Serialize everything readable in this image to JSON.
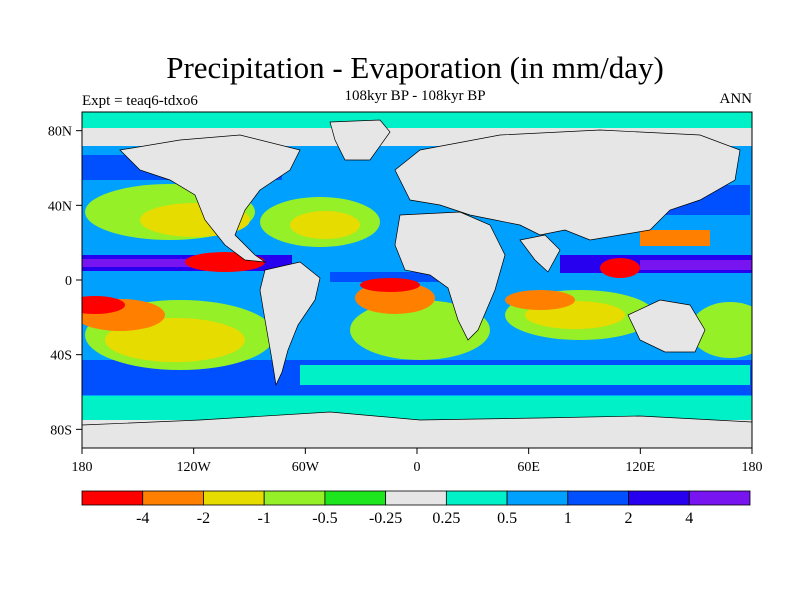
{
  "title": "Precipitation - Evaporation (in mm/day)",
  "subtitle": "108kyr BP - 108kyr BP",
  "left_label": "Expt = teaq6-tdxo6",
  "right_label": "ANN",
  "map": {
    "projection": "cylindrical-equidistant",
    "lon_range": [
      -180,
      180
    ],
    "lat_range": [
      -90,
      90
    ],
    "land_color": "#e6e6e6",
    "lat_ticks": [
      {
        "value": 80,
        "label": "80N"
      },
      {
        "value": 40,
        "label": "40N"
      },
      {
        "value": 0,
        "label": "0"
      },
      {
        "value": -40,
        "label": "40S"
      },
      {
        "value": -80,
        "label": "80S"
      }
    ],
    "lon_ticks": [
      {
        "value": -180,
        "label": "180"
      },
      {
        "value": -120,
        "label": "120W"
      },
      {
        "value": -60,
        "label": "60W"
      },
      {
        "value": 0,
        "label": "0"
      },
      {
        "value": 60,
        "label": "60E"
      },
      {
        "value": 120,
        "label": "120E"
      },
      {
        "value": 180,
        "label": "180"
      }
    ]
  },
  "colorbar": {
    "colors": [
      "#ff0000",
      "#ff8000",
      "#e6dc00",
      "#96f028",
      "#1ee61e",
      "#e6e6e6",
      "#00f0c8",
      "#00a0ff",
      "#0050ff",
      "#2800f0",
      "#7814f0"
    ],
    "labels": [
      "-4",
      "-2",
      "-1",
      "-0.5",
      "-0.25",
      "0.25",
      "0.5",
      "1",
      "2",
      "4"
    ]
  },
  "chart_data": {
    "type": "heatmap",
    "title": "Precipitation - Evaporation (in mm/day)",
    "subtitle": "108kyr BP - 108kyr BP",
    "variable_units": "mm/day",
    "period": "ANN",
    "experiment": "teaq6-tdxo6",
    "levels": [
      -4,
      -2,
      -1,
      -0.5,
      -0.25,
      0.25,
      0.5,
      1,
      2,
      4
    ],
    "xlim": [
      -180,
      180
    ],
    "ylim": [
      -90,
      90
    ]
  }
}
